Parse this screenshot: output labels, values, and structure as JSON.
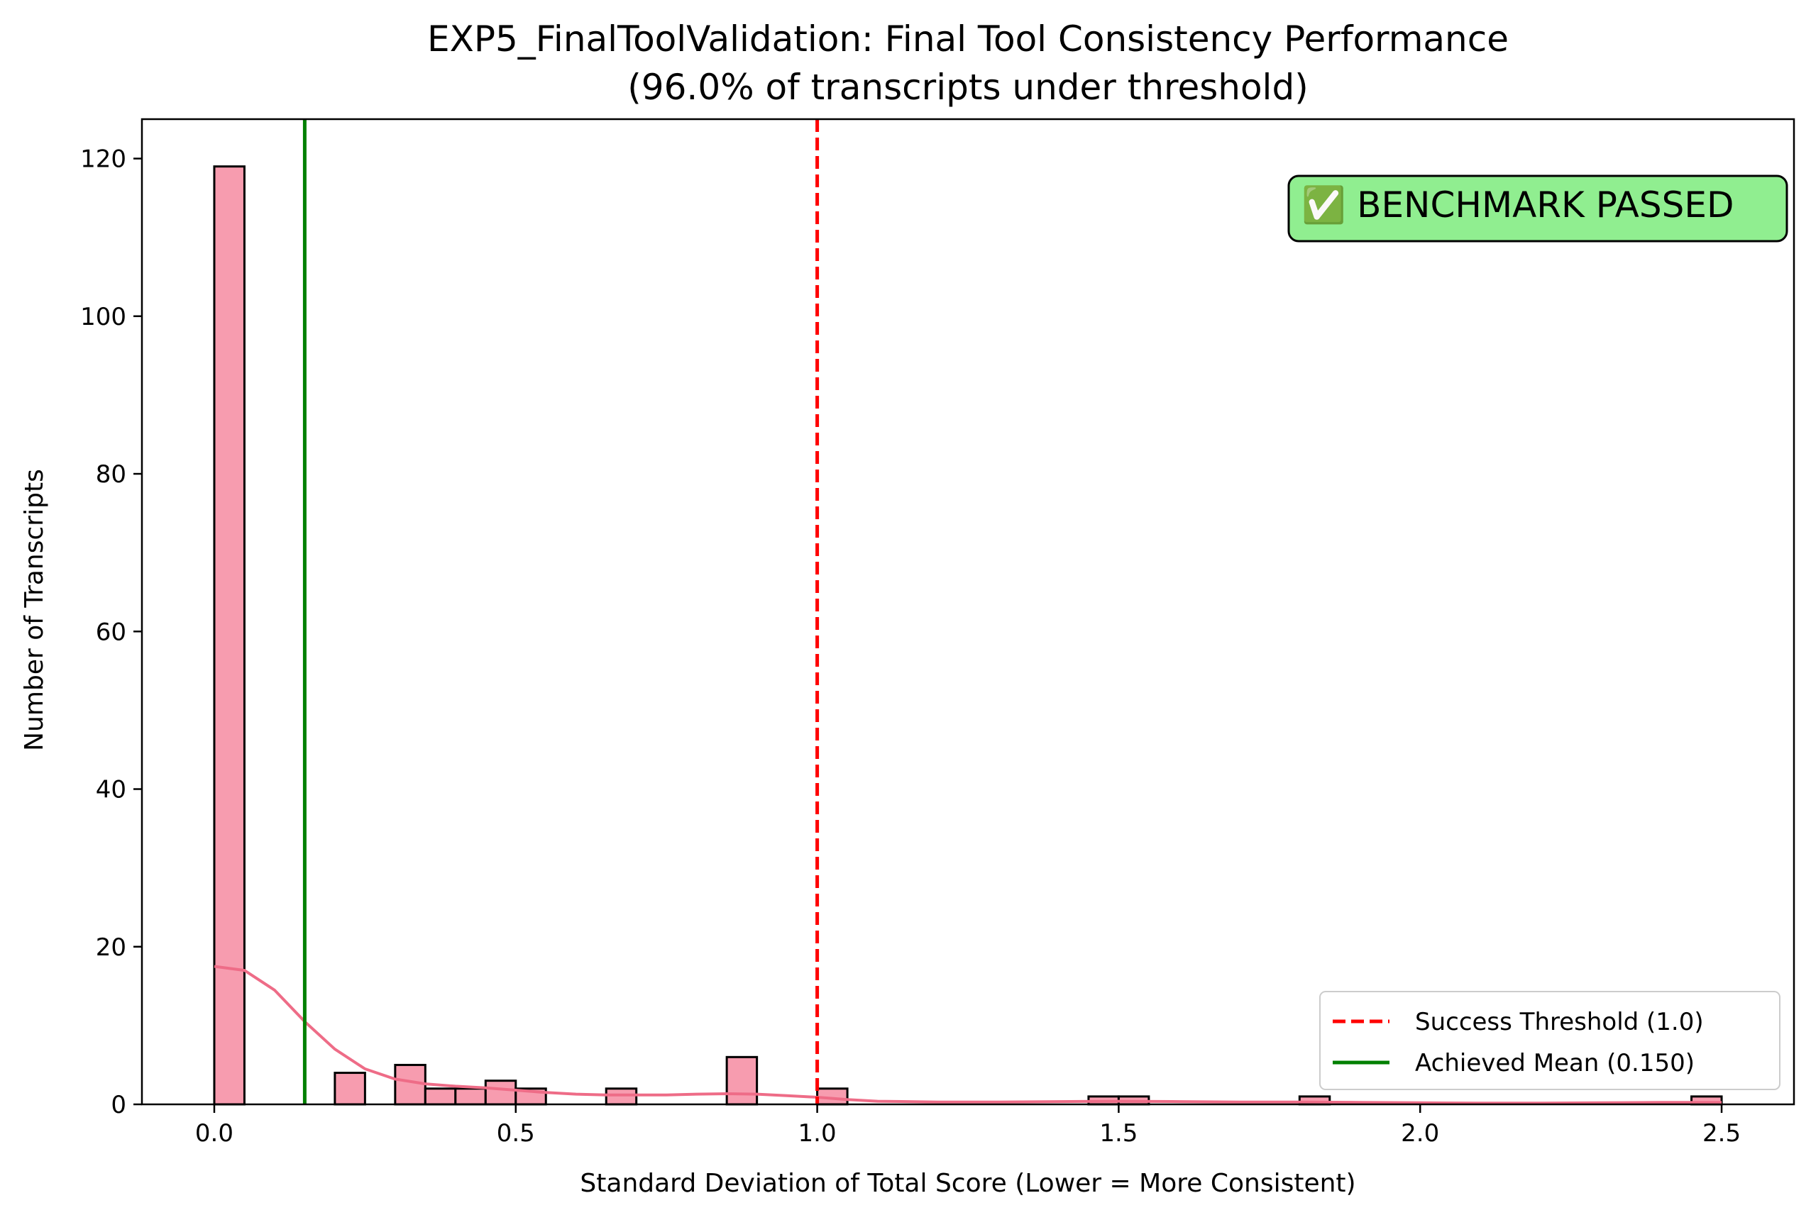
{
  "chart_data": {
    "type": "bar",
    "title_line1": "EXP5_FinalToolValidation: Final Tool Consistency Performance",
    "title_line2": "(96.0% of transcripts under threshold)",
    "xlabel": "Standard Deviation of Total Score (Lower = More Consistent)",
    "ylabel": "Number of Transcripts",
    "xlim": [
      -0.12,
      2.62
    ],
    "ylim": [
      0,
      125
    ],
    "x_ticks": [
      0.0,
      0.5,
      1.0,
      1.5,
      2.0,
      2.5
    ],
    "x_tick_labels": [
      "0.0",
      "0.5",
      "1.0",
      "1.5",
      "2.0",
      "2.5"
    ],
    "y_ticks": [
      0,
      20,
      40,
      60,
      80,
      100,
      120
    ],
    "y_tick_labels": [
      "0",
      "20",
      "40",
      "60",
      "80",
      "100",
      "120"
    ],
    "bin_width": 0.05,
    "bins": [
      {
        "x0": 0.0,
        "count": 119
      },
      {
        "x0": 0.2,
        "count": 4
      },
      {
        "x0": 0.3,
        "count": 5
      },
      {
        "x0": 0.35,
        "count": 2
      },
      {
        "x0": 0.4,
        "count": 2
      },
      {
        "x0": 0.45,
        "count": 3
      },
      {
        "x0": 0.5,
        "count": 2
      },
      {
        "x0": 0.65,
        "count": 2
      },
      {
        "x0": 0.85,
        "count": 6
      },
      {
        "x0": 1.0,
        "count": 2
      },
      {
        "x0": 1.45,
        "count": 1
      },
      {
        "x0": 1.5,
        "count": 1
      },
      {
        "x0": 1.8,
        "count": 1
      },
      {
        "x0": 2.45,
        "count": 1
      }
    ],
    "kde": [
      [
        0.0,
        17.5
      ],
      [
        0.05,
        17.0
      ],
      [
        0.1,
        14.5
      ],
      [
        0.15,
        10.5
      ],
      [
        0.2,
        7.0
      ],
      [
        0.25,
        4.5
      ],
      [
        0.3,
        3.2
      ],
      [
        0.35,
        2.6
      ],
      [
        0.4,
        2.3
      ],
      [
        0.45,
        2.1
      ],
      [
        0.5,
        1.8
      ],
      [
        0.55,
        1.5
      ],
      [
        0.6,
        1.3
      ],
      [
        0.65,
        1.2
      ],
      [
        0.7,
        1.2
      ],
      [
        0.75,
        1.2
      ],
      [
        0.8,
        1.3
      ],
      [
        0.85,
        1.35
      ],
      [
        0.9,
        1.3
      ],
      [
        0.95,
        1.1
      ],
      [
        1.0,
        0.9
      ],
      [
        1.05,
        0.6
      ],
      [
        1.1,
        0.4
      ],
      [
        1.2,
        0.3
      ],
      [
        1.3,
        0.3
      ],
      [
        1.4,
        0.35
      ],
      [
        1.5,
        0.4
      ],
      [
        1.6,
        0.35
      ],
      [
        1.7,
        0.3
      ],
      [
        1.8,
        0.3
      ],
      [
        1.9,
        0.25
      ],
      [
        2.0,
        0.2
      ],
      [
        2.1,
        0.15
      ],
      [
        2.2,
        0.15
      ],
      [
        2.3,
        0.2
      ],
      [
        2.4,
        0.25
      ],
      [
        2.5,
        0.25
      ]
    ],
    "threshold": 1.0,
    "mean": 0.15,
    "legend_position": "lower-right",
    "legend": [
      {
        "label": "Success Threshold (1.0)",
        "style": "dashed",
        "color": "#ff0000"
      },
      {
        "label": "Achieved Mean (0.150)",
        "style": "solid",
        "color": "#008000"
      }
    ],
    "badge_text": "✅ BENCHMARK PASSED",
    "colors": {
      "bar_fill": "#f79caf",
      "bar_edge": "#000000",
      "kde": "#ee6c87",
      "threshold": "#ff0000",
      "mean": "#008000",
      "badge_fill": "#90ee90"
    }
  }
}
